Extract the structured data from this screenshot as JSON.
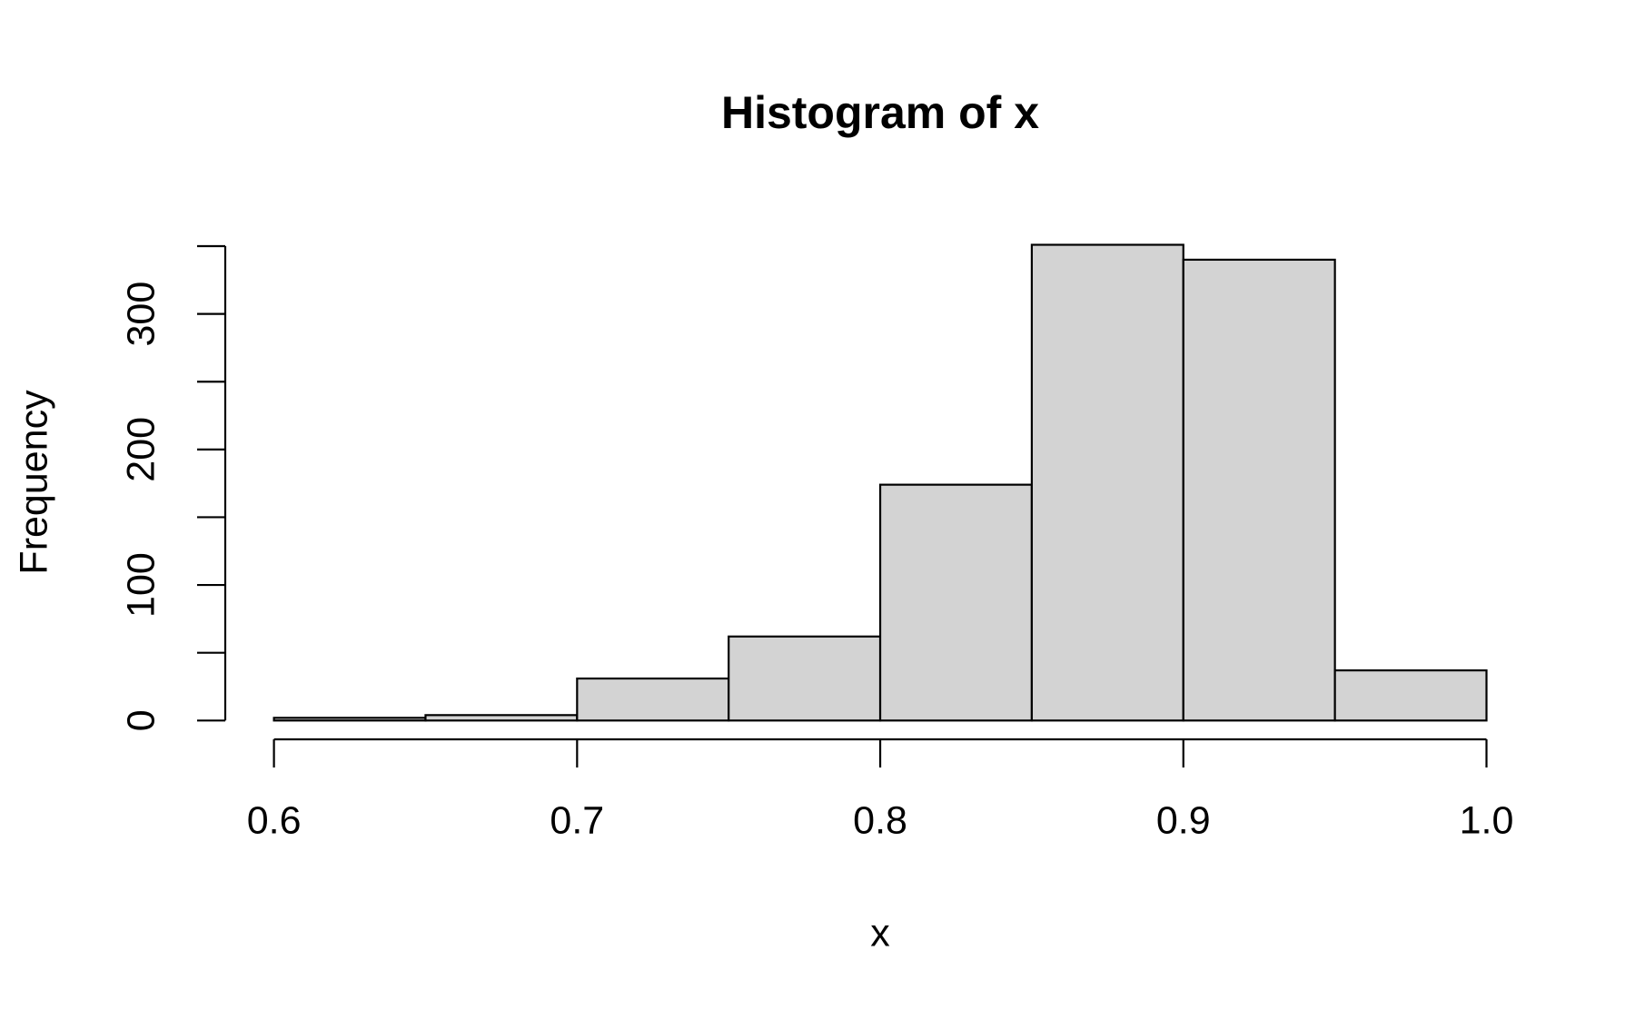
{
  "chart_data": {
    "type": "histogram",
    "title": "Histogram of x",
    "x_label": "x",
    "y_label": "Frequency",
    "bins": [
      0.6,
      0.65,
      0.7,
      0.75,
      0.8,
      0.85,
      0.9,
      0.95,
      1.0
    ],
    "counts": [
      2,
      4,
      31,
      62,
      174,
      351,
      340,
      37
    ],
    "color": "#d3d3d3",
    "xlim": [
      0.6,
      1.0
    ],
    "xticks": [
      0.6,
      0.7,
      0.8,
      0.9,
      {
        "value": 1.0,
        "label": "1.0"
      }
    ],
    "ylim": [
      0,
      350
    ],
    "yticks": [
      0,
      100,
      200,
      300
    ],
    "yticks_unlabeled": [
      50,
      150,
      250,
      350
    ]
  }
}
